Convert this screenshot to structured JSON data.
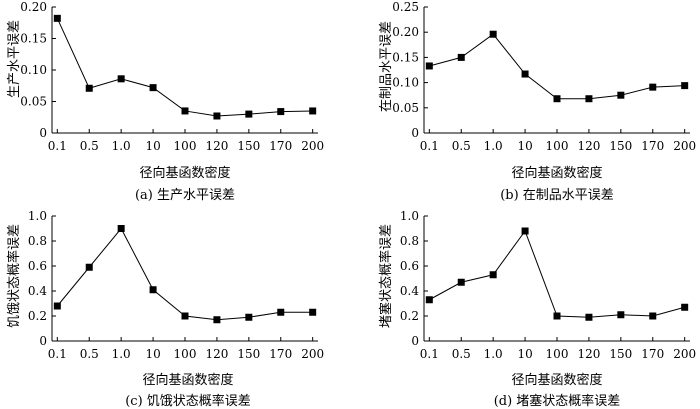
{
  "chart_data": [
    {
      "type": "line",
      "caption": "(a) 生产水平误差",
      "xlabel": "径向基函数密度",
      "ylabel": "生产水平误差",
      "categories": [
        "0.1",
        "0.5",
        "1.0",
        "10",
        "100",
        "120",
        "150",
        "170",
        "200"
      ],
      "values": [
        0.182,
        0.071,
        0.086,
        0.072,
        0.035,
        0.027,
        0.03,
        0.034,
        0.035
      ],
      "ylim": [
        0,
        0.2
      ],
      "yticks": [
        "0",
        "0.05",
        "0.10",
        "0.15",
        "0.20"
      ],
      "ytick_values": [
        0,
        0.05,
        0.1,
        0.15,
        0.2
      ],
      "marker": "square",
      "grid": false
    },
    {
      "type": "line",
      "caption": "(b) 在制品水平误差",
      "xlabel": "径向基函数密度",
      "ylabel": "在制品水平误差",
      "categories": [
        "0.1",
        "0.5",
        "1.0",
        "10",
        "100",
        "120",
        "150",
        "170",
        "200"
      ],
      "values": [
        0.133,
        0.15,
        0.196,
        0.117,
        0.068,
        0.068,
        0.075,
        0.091,
        0.094
      ],
      "ylim": [
        0,
        0.25
      ],
      "yticks": [
        "0",
        "0.05",
        "0.10",
        "0.15",
        "0.20",
        "0.25"
      ],
      "ytick_values": [
        0,
        0.05,
        0.1,
        0.15,
        0.2,
        0.25
      ],
      "marker": "square",
      "grid": false
    },
    {
      "type": "line",
      "caption": "(c) 饥饿状态概率误差",
      "xlabel": "径向基函数密度",
      "ylabel": "饥饿状态概率误差",
      "categories": [
        "0.1",
        "0.5",
        "1.0",
        "10",
        "100",
        "120",
        "150",
        "170",
        "200"
      ],
      "values": [
        0.28,
        0.59,
        0.9,
        0.41,
        0.2,
        0.17,
        0.19,
        0.23,
        0.23
      ],
      "ylim": [
        0,
        1.0
      ],
      "yticks": [
        "0",
        "0.2",
        "0.4",
        "0.6",
        "0.8",
        "1.0"
      ],
      "ytick_values": [
        0,
        0.2,
        0.4,
        0.6,
        0.8,
        1.0
      ],
      "marker": "square",
      "grid": false
    },
    {
      "type": "line",
      "caption": "(d) 堵塞状态概率误差",
      "xlabel": "径向基函数密度",
      "ylabel": "堵塞状态概率误差",
      "categories": [
        "0.1",
        "0.5",
        "1.0",
        "10",
        "100",
        "120",
        "150",
        "170",
        "200"
      ],
      "values": [
        0.33,
        0.47,
        0.53,
        0.88,
        0.2,
        0.19,
        0.21,
        0.2,
        0.27
      ],
      "ylim": [
        0,
        1.0
      ],
      "yticks": [
        "0",
        "0.2",
        "0.4",
        "0.6",
        "0.8",
        "1.0"
      ],
      "ytick_values": [
        0,
        0.2,
        0.4,
        0.6,
        0.8,
        1.0
      ],
      "marker": "square",
      "grid": false
    }
  ]
}
